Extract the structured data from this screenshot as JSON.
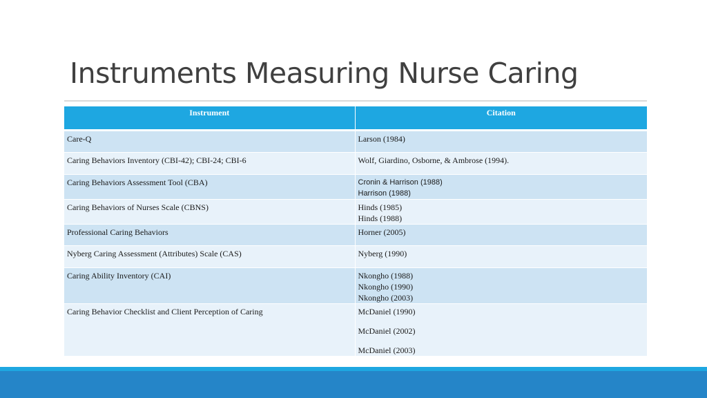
{
  "slide": {
    "title": "Instruments Measuring Nurse Caring"
  },
  "table": {
    "headers": [
      "Instrument",
      "Citation"
    ],
    "rows": [
      {
        "instrument": "Care-Q",
        "citations": [
          "Larson (1984)"
        ]
      },
      {
        "instrument": "Caring Behaviors Inventory (CBI-42); CBI-24; CBI-6",
        "citations": [
          "Wolf, Giardino, Osborne, & Ambrose (1994)."
        ]
      },
      {
        "instrument": "Caring Behaviors Assessment Tool (CBA)",
        "citations": [
          "Cronin & Harrison (1988)",
          "Harrison (1988)"
        ]
      },
      {
        "instrument": "Caring Behaviors of Nurses Scale (CBNS)",
        "citations": [
          "Hinds (1985)",
          "Hinds (1988)"
        ]
      },
      {
        "instrument": "Professional Caring Behaviors",
        "citations": [
          "Horner (2005)"
        ]
      },
      {
        "instrument": "Nyberg Caring Assessment (Attributes) Scale (CAS)",
        "citations": [
          "Nyberg (1990)"
        ]
      },
      {
        "instrument": "Caring Ability Inventory (CAI)",
        "citations": [
          "Nkongho (1988)",
          "Nkongho (1990)",
          "Nkongho (2003)"
        ]
      },
      {
        "instrument": "Caring Behavior Checklist and Client Perception of Caring",
        "citations": [
          "McDaniel (1990)",
          "McDaniel (2002)",
          "McDaniel (2003)"
        ]
      }
    ]
  },
  "colors": {
    "header_bg": "#1ea7e1",
    "row_dark": "#cde3f3",
    "row_light": "#e8f2fa",
    "footer": "#2585c8"
  }
}
